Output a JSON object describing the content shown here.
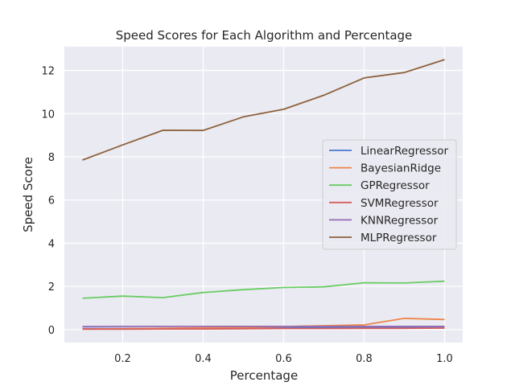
{
  "chart_data": {
    "type": "line",
    "title": "Speed Scores for Each Algorithm and Percentage",
    "xlabel": "Percentage",
    "ylabel": "Speed Score",
    "x": [
      0.1,
      0.2,
      0.3,
      0.4,
      0.5,
      0.6,
      0.7,
      0.8,
      0.9,
      1.0
    ],
    "xlim": [
      0.055,
      1.045
    ],
    "ylim": [
      -0.6,
      13.1
    ],
    "xticks": [
      0.2,
      0.4,
      0.6,
      0.8,
      1.0
    ],
    "xtick_labels": [
      "0.2",
      "0.4",
      "0.6",
      "0.8",
      "1.0"
    ],
    "yticks": [
      0,
      2,
      4,
      6,
      8,
      10,
      12
    ],
    "ytick_labels": [
      "0",
      "2",
      "4",
      "6",
      "8",
      "10",
      "12"
    ],
    "grid": true,
    "legend_position": "center-right",
    "background": "#eaeaf2",
    "series": [
      {
        "name": "LinearRegressor",
        "color": "#4878d0",
        "values": [
          0.05,
          0.05,
          0.06,
          0.06,
          0.07,
          0.09,
          0.1,
          0.11,
          0.12,
          0.13
        ]
      },
      {
        "name": "BayesianRidge",
        "color": "#ee854a",
        "values": [
          0.03,
          0.04,
          0.06,
          0.08,
          0.1,
          0.14,
          0.18,
          0.22,
          0.52,
          0.47
        ]
      },
      {
        "name": "GPRegressor",
        "color": "#6acc64",
        "values": [
          1.45,
          1.55,
          1.48,
          1.72,
          1.85,
          1.95,
          1.98,
          2.17,
          2.16,
          2.24
        ]
      },
      {
        "name": "SVMRegressor",
        "color": "#d65f5f",
        "values": [
          0.02,
          0.02,
          0.03,
          0.03,
          0.04,
          0.05,
          0.05,
          0.06,
          0.06,
          0.07
        ]
      },
      {
        "name": "KNNRegressor",
        "color": "#956cb4",
        "values": [
          0.14,
          0.15,
          0.15,
          0.15,
          0.15,
          0.15,
          0.15,
          0.15,
          0.15,
          0.15
        ]
      },
      {
        "name": "MLPRegressor",
        "color": "#8c613c",
        "values": [
          7.85,
          8.55,
          9.23,
          9.22,
          9.85,
          10.2,
          10.85,
          11.65,
          11.9,
          12.5
        ]
      }
    ]
  }
}
